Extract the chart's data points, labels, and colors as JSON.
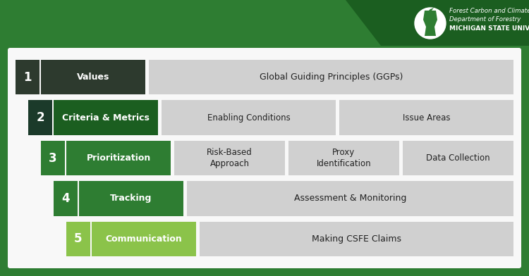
{
  "bg_color": "#2e7d32",
  "card_bg": "#f5f5f5",
  "header_bg": "#1b5e20",
  "logo_color": "#ffffff",
  "rows": [
    {
      "number": "1",
      "label": "Values",
      "num_bg": "#2d3a2e",
      "label_bg": "#2d3a2e",
      "label_color": "#ffffff",
      "num_color": "#ffffff",
      "items": [
        "Global Guiding Principles (GGPs)"
      ],
      "indent": 0
    },
    {
      "number": "2",
      "label": "Criteria & Metrics",
      "num_bg": "#1b3a2a",
      "label_bg": "#1b5e20",
      "label_color": "#ffffff",
      "num_color": "#ffffff",
      "items": [
        "Enabling Conditions",
        "Issue Areas"
      ],
      "indent": 1
    },
    {
      "number": "3",
      "label": "Prioritization",
      "num_bg": "#2e7d32",
      "label_bg": "#2e7d32",
      "label_color": "#ffffff",
      "num_color": "#ffffff",
      "items": [
        "Risk-Based\nApproach",
        "Proxy\nIdentification",
        "Data Collection"
      ],
      "indent": 2
    },
    {
      "number": "4",
      "label": "Tracking",
      "num_bg": "#2e7d32",
      "label_bg": "#2e7d32",
      "label_color": "#ffffff",
      "num_color": "#ffffff",
      "items": [
        "Assessment & Monitoring"
      ],
      "indent": 3
    },
    {
      "number": "5",
      "label": "Communication",
      "num_bg": "#8bc34a",
      "label_bg": "#8bc34a",
      "label_color": "#ffffff",
      "num_color": "#ffffff",
      "items": [
        "Making CSFE Claims"
      ],
      "indent": 4
    }
  ],
  "header_lines": [
    "Forest Carbon and Climate Program",
    "Department of Forestry",
    "MICHIGAN STATE UNIVERSITY"
  ],
  "item_bg": "#d0d0d0",
  "item_bg2": "#c0c0c0"
}
